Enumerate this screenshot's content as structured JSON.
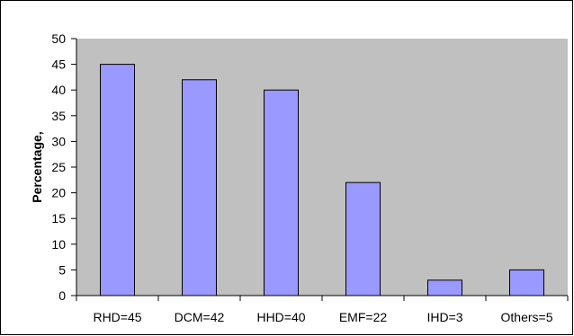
{
  "chart_data": {
    "type": "bar",
    "title": "",
    "xlabel": "",
    "ylabel": "Percentage,",
    "categories": [
      "RHD=45",
      "DCM=42",
      "HHD=40",
      "EMF=22",
      "IHD=3",
      "Others=5"
    ],
    "values": [
      45,
      42,
      40,
      22,
      3,
      5
    ],
    "ylim": [
      0,
      50
    ],
    "yticks": [
      0,
      5,
      10,
      15,
      20,
      25,
      30,
      35,
      40,
      45,
      50
    ],
    "grid": false,
    "legend": "none",
    "colors": {
      "bar_fill": "#9999ff",
      "bar_stroke": "#000000",
      "plot_background": "#c0c0c0",
      "chart_background": "#ffffff"
    }
  }
}
